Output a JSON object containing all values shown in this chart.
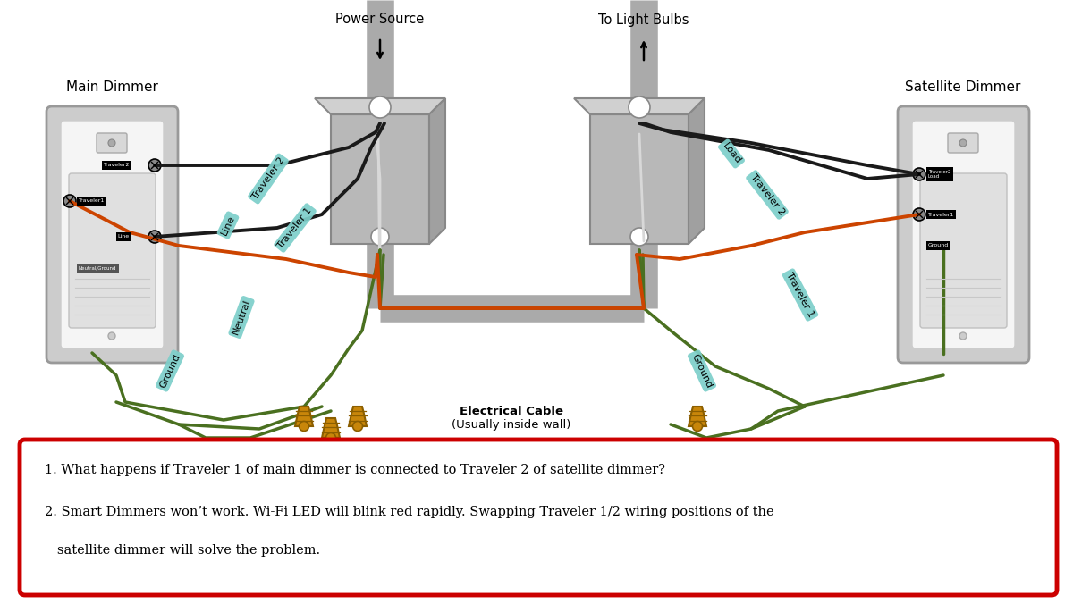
{
  "bg_color": "#ffffff",
  "note_line1": "1. What happens if Traveler 1 of main dimmer is connected to Traveler 2 of satellite dimmer?",
  "note_line2": "2. Smart Dimmers won’t work. Wi-Fi LED will blink red rapidly. Swapping Traveler 1/2 wiring positions of the",
  "note_line3": "   satellite dimmer will solve the problem.",
  "label_power_source": "Power Source",
  "label_light_bulbs": "To Light Bulbs",
  "label_main_dimmer": "Main Dimmer",
  "label_satellite_dimmer": "Satellite Dimmer",
  "label_electrical_cable_1": "Electrical Cable",
  "label_electrical_cable_2": "(Usually inside wall)",
  "label_traveler2_left": "Traveler 2",
  "label_traveler1_left": "Traveler 1",
  "label_line": "Line",
  "label_neutral": "Neutral",
  "label_ground_left": "Ground",
  "label_load": "Load",
  "label_traveler2_right": "Traveler 2",
  "label_traveler1_right": "Traveler 1",
  "label_ground_right": "Ground",
  "wire_black": "#1a1a1a",
  "wire_red": "#cc4400",
  "wire_green": "#4a7020",
  "wire_white": "#d8d8d8",
  "box_fill": "#b8b8b8",
  "box_side": "#9a9a9a",
  "box_dark": "#888888",
  "conduit_color": "#aaaaaa",
  "dimmer_outer": "#cccccc",
  "dimmer_inner": "#e8e8e8",
  "dimmer_panel": "#f5f5f5",
  "label_bg": "#7dcfca",
  "note_border": "#cc0000",
  "note_bg": "#ffffff",
  "wirenut_color": "#c8860a",
  "wirenut_dark": "#8b5e00"
}
